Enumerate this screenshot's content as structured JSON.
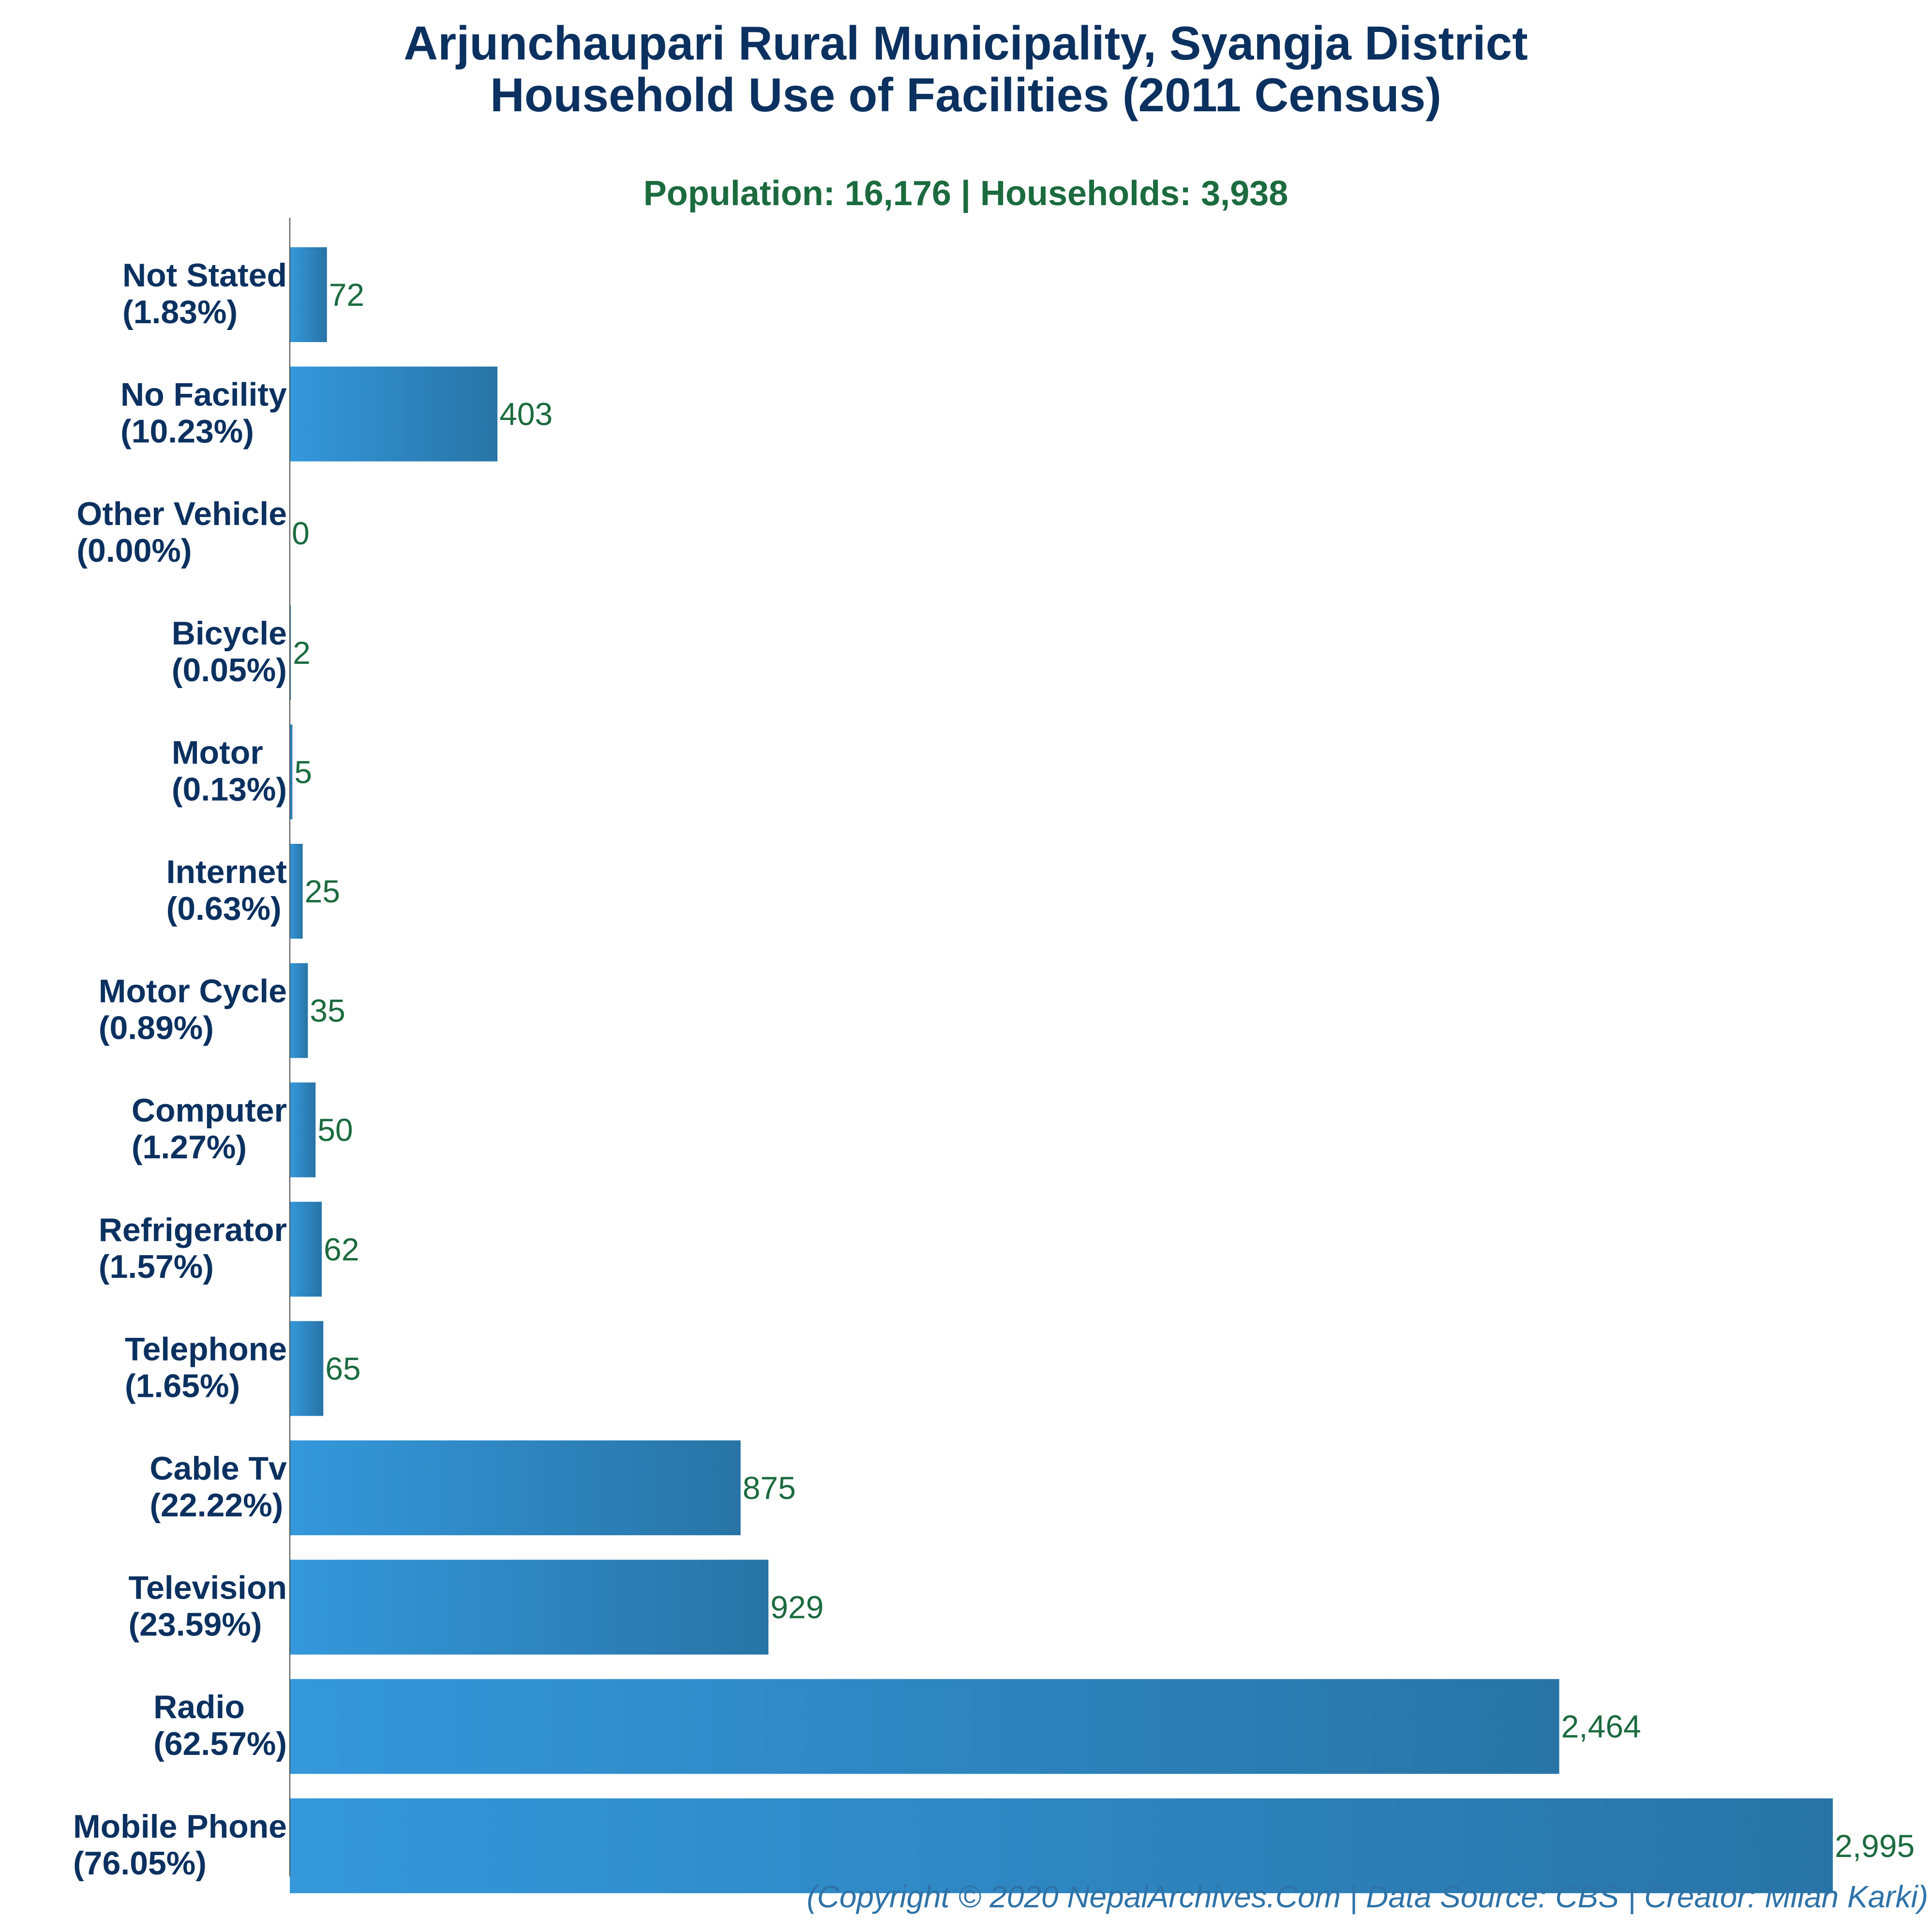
{
  "chart_data": {
    "type": "bar",
    "orientation": "horizontal",
    "title": [
      "Arjunchaupari Rural Municipality, Syangja District",
      "Household Use of Facilities (2011 Census)"
    ],
    "subtitle": "Population: 16,176 | Households: 3,938",
    "categories": [
      "Not Stated",
      "No Facility",
      "Other Vehicle",
      "Bicycle",
      "Motor",
      "Internet",
      "Motor Cycle",
      "Computer",
      "Refrigerator",
      "Telephone",
      "Cable Tv",
      "Television",
      "Radio",
      "Mobile Phone"
    ],
    "percentages": [
      "(1.83%)",
      "(10.23%)",
      "(0.00%)",
      "(0.05%)",
      "(0.13%)",
      "(0.63%)",
      "(0.89%)",
      "(1.27%)",
      "(1.57%)",
      "(1.65%)",
      "(22.22%)",
      "(23.59%)",
      "(62.57%)",
      "(76.05%)"
    ],
    "values": [
      72,
      403,
      0,
      2,
      5,
      25,
      35,
      50,
      62,
      65,
      875,
      929,
      2464,
      2995
    ],
    "value_labels": [
      "72",
      "403",
      "0",
      "2",
      "5",
      "25",
      "35",
      "50",
      "62",
      "65",
      "875",
      "929",
      "2,464",
      "2,995"
    ],
    "xlim": [
      0,
      2995
    ],
    "grid": false,
    "legend": "none",
    "colors": {
      "bar_light": "#3498db",
      "bar_dark": "#2874a6",
      "title": "#0b3160",
      "subtitle": "#1b6b3f",
      "value_text": "#1b6b3f",
      "footer": "#2e73a8",
      "axis": "#4a4a4a"
    }
  },
  "footer": "(Copyright © 2020 NepalArchives.Com | Data Source: CBS | Creator: Milan Karki)"
}
